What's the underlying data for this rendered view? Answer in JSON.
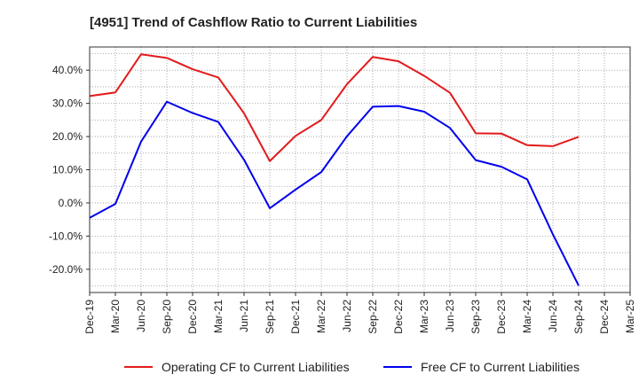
{
  "chart_data": {
    "type": "line",
    "title": "[4951]  Trend of Cashflow Ratio to Current Liabilities",
    "xlabel": "",
    "ylabel": "",
    "x": [
      "Dec-19",
      "Mar-20",
      "Jun-20",
      "Sep-20",
      "Dec-20",
      "Mar-21",
      "Jun-21",
      "Sep-21",
      "Dec-21",
      "Mar-22",
      "Jun-22",
      "Sep-22",
      "Dec-22",
      "Mar-23",
      "Jun-23",
      "Sep-23",
      "Dec-23",
      "Mar-24",
      "Jun-24",
      "Sep-24",
      "Dec-24",
      "Mar-25"
    ],
    "ylim": [
      -27,
      47
    ],
    "yticks": [
      40,
      30,
      20,
      10,
      0,
      -10,
      -20
    ],
    "ytick_labels": [
      "40.0%",
      "30.0%",
      "20.0%",
      "10.0%",
      "0.0%",
      "-10.0%",
      "-20.0%"
    ],
    "grid": true,
    "legend_position": "bottom",
    "series": [
      {
        "name": "Operating CF to Current Liabilities",
        "color": "#e31a1c",
        "values": [
          32.2,
          33.3,
          44.8,
          43.7,
          40.3,
          37.8,
          27.0,
          12.6,
          20.2,
          25.0,
          35.8,
          44.0,
          42.7,
          38.3,
          33.2,
          21.0,
          20.9,
          17.4,
          17.1,
          19.9,
          null,
          null
        ]
      },
      {
        "name": "Free CF to Current Liabilities",
        "color": "#0000ee",
        "values": [
          -4.5,
          -0.3,
          18.5,
          30.5,
          27.1,
          24.4,
          13.0,
          -1.6,
          4.0,
          9.3,
          20.1,
          29.0,
          29.2,
          27.5,
          22.6,
          12.9,
          10.9,
          7.1,
          -9.5,
          -24.9,
          null,
          null
        ]
      }
    ]
  }
}
